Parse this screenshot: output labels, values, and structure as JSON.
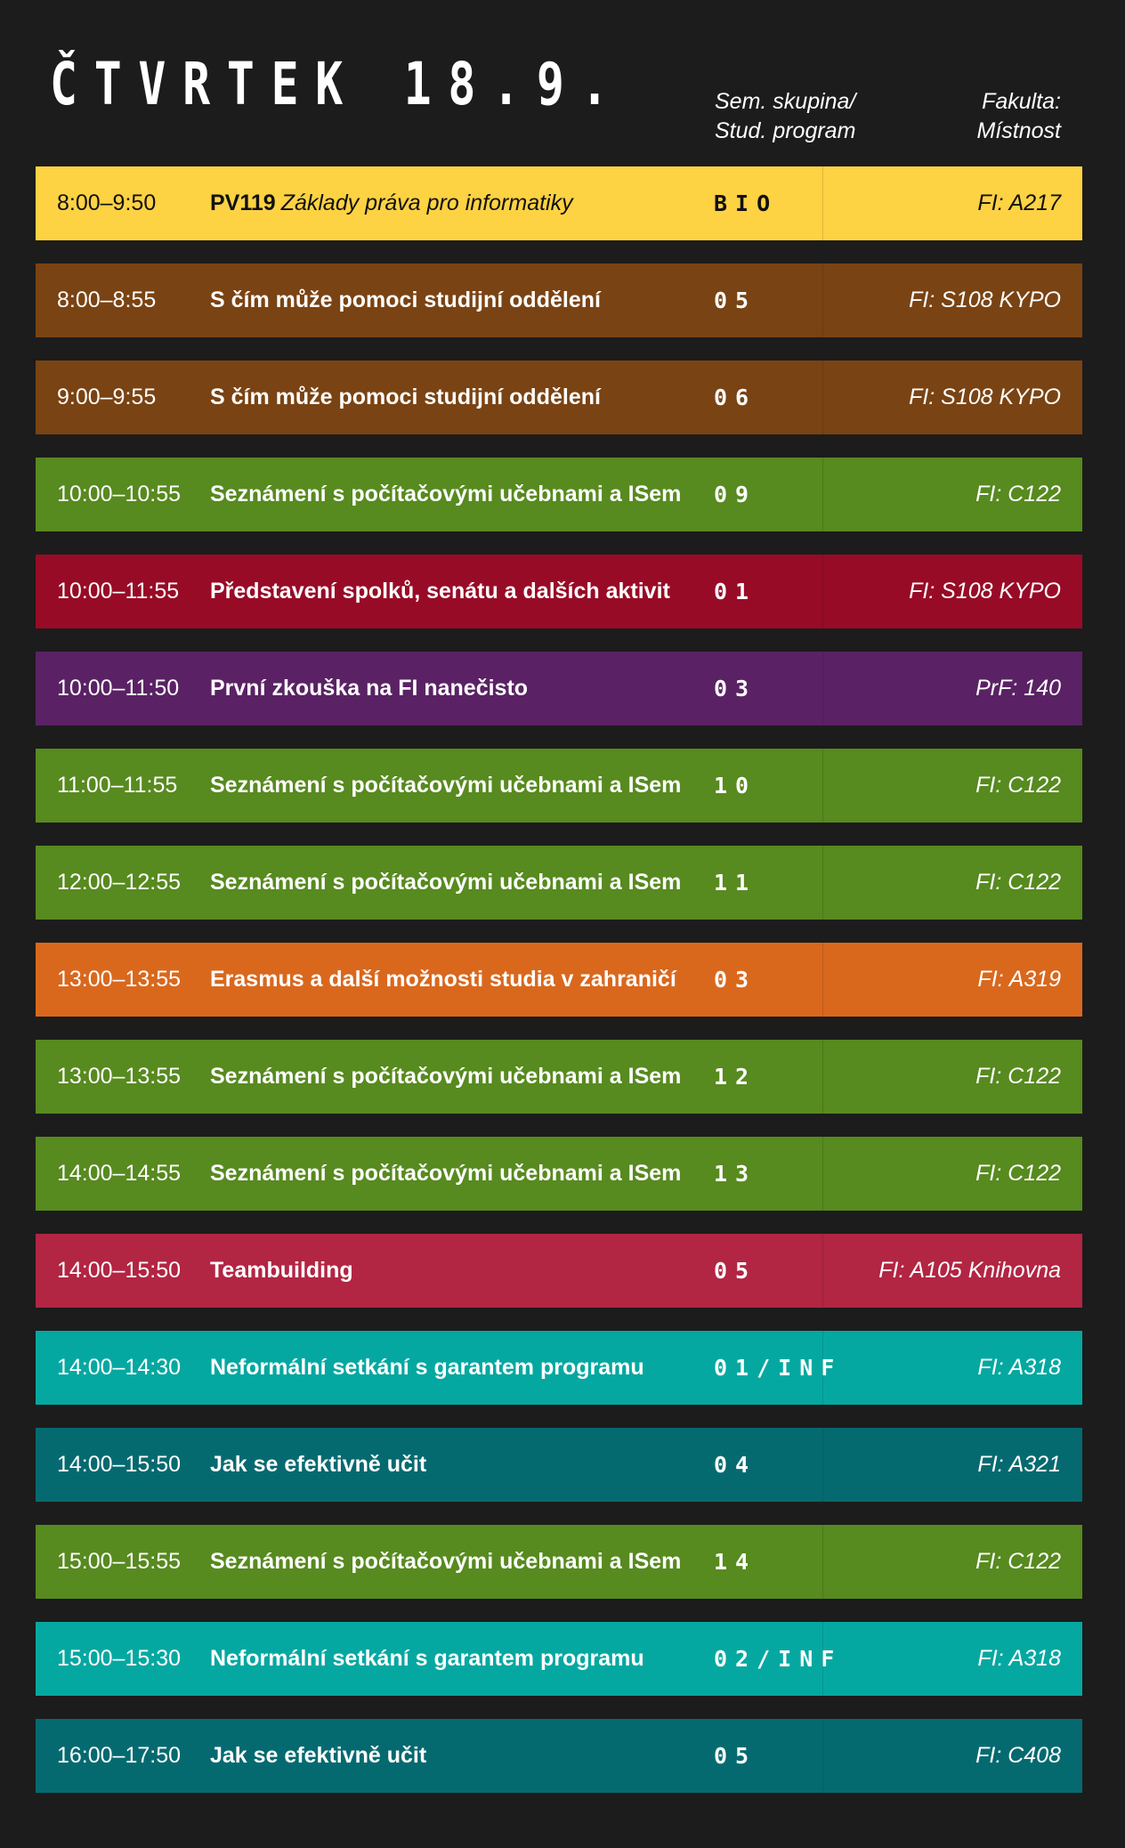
{
  "title": "ČTVRTEK 18.9.",
  "headers": {
    "group": "Sem. skupina/\nStud. program",
    "faculty": "Fakulta:\nMístnost"
  },
  "colors": {
    "yellow": "#fdd243",
    "brown": "#7a4313",
    "green": "#578a1f",
    "crimson": "#980b26",
    "purple": "#5a2264",
    "orange": "#d9681d",
    "raspberry": "#b22543",
    "teal": "#05a8a1",
    "darkteal": "#056a70"
  },
  "rows": [
    {
      "time": "8:00–9:50",
      "code": "PV119",
      "name": "Základy práva pro informatiky",
      "group": "BIO",
      "room": "FI: A217",
      "color": "yellow"
    },
    {
      "time": "8:00–8:55",
      "name": "S čím může pomoci studijní oddělení",
      "group": "05",
      "room": "FI: S108 KYPO",
      "color": "brown"
    },
    {
      "time": "9:00–9:55",
      "name": "S čím může pomoci studijní oddělení",
      "group": "06",
      "room": "FI: S108 KYPO",
      "color": "brown"
    },
    {
      "time": "10:00–10:55",
      "name": "Seznámení s počítačovými učebnami a ISem",
      "group": "09",
      "room": "FI: C122",
      "color": "green"
    },
    {
      "time": "10:00–11:55",
      "name": "Představení spolků, senátu a dalších aktivit",
      "group": "01",
      "room": "FI: S108 KYPO",
      "color": "crimson"
    },
    {
      "time": "10:00–11:50",
      "name": "První zkouška na FI nanečisto",
      "group": "03",
      "room": "PrF: 140",
      "color": "purple"
    },
    {
      "time": "11:00–11:55",
      "name": "Seznámení s počítačovými učebnami a ISem",
      "group": "10",
      "room": "FI: C122",
      "color": "green"
    },
    {
      "time": "12:00–12:55",
      "name": "Seznámení s počítačovými učebnami a ISem",
      "group": "11",
      "room": "FI: C122",
      "color": "green"
    },
    {
      "time": "13:00–13:55",
      "name": "Erasmus a další možnosti studia v zahraničí",
      "group": "03",
      "room": "FI: A319",
      "color": "orange"
    },
    {
      "time": "13:00–13:55",
      "name": "Seznámení s počítačovými učebnami a ISem",
      "group": "12",
      "room": "FI: C122",
      "color": "green"
    },
    {
      "time": "14:00–14:55",
      "name": "Seznámení s počítačovými učebnami a ISem",
      "group": "13",
      "room": "FI: C122",
      "color": "green"
    },
    {
      "time": "14:00–15:50",
      "name": "Teambuilding",
      "group": "05",
      "room": "FI: A105 Knihovna",
      "color": "raspberry"
    },
    {
      "time": "14:00–14:30",
      "name": "Neformální setkání s garantem programu",
      "group": "01/INF",
      "room": "FI: A318",
      "color": "teal"
    },
    {
      "time": "14:00–15:50",
      "name": "Jak se efektivně učit",
      "group": "04",
      "room": "FI: A321",
      "color": "darkteal"
    },
    {
      "time": "15:00–15:55",
      "name": "Seznámení s počítačovými učebnami a ISem",
      "group": "14",
      "room": "FI: C122",
      "color": "green"
    },
    {
      "time": "15:00–15:30",
      "name": "Neformální setkání s garantem programu",
      "group": "02/INF",
      "room": "FI: A318",
      "color": "teal"
    },
    {
      "time": "16:00–17:50",
      "name": "Jak se efektivně učit",
      "group": "05",
      "room": "FI: C408",
      "color": "darkteal"
    }
  ]
}
